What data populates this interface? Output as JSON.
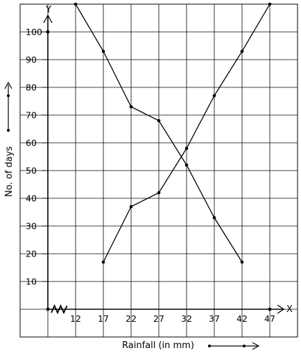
{
  "chart_data": {
    "type": "line",
    "xlabel": "Rainfall (in mm)",
    "ylabel": "No. of days",
    "x_axis_letter": "X",
    "y_axis_letter": "Y",
    "categories": [
      "12",
      "17",
      "22",
      "27",
      "32",
      "37",
      "42",
      "47"
    ],
    "y_ticks": [
      10,
      20,
      30,
      40,
      50,
      60,
      70,
      80,
      90,
      100
    ],
    "ylim": [
      0,
      110
    ],
    "grid": true,
    "series": [
      {
        "x": [
          12,
          17,
          22,
          27,
          32,
          37,
          42
        ],
        "values": [
          110,
          93,
          73,
          68,
          52,
          33,
          17
        ]
      },
      {
        "x": [
          17,
          22,
          27,
          32,
          37,
          42,
          47
        ],
        "values": [
          17,
          37,
          42,
          58,
          77,
          93,
          110
        ]
      }
    ],
    "colors": {
      "line": "#000000",
      "grid": "#000000"
    }
  }
}
